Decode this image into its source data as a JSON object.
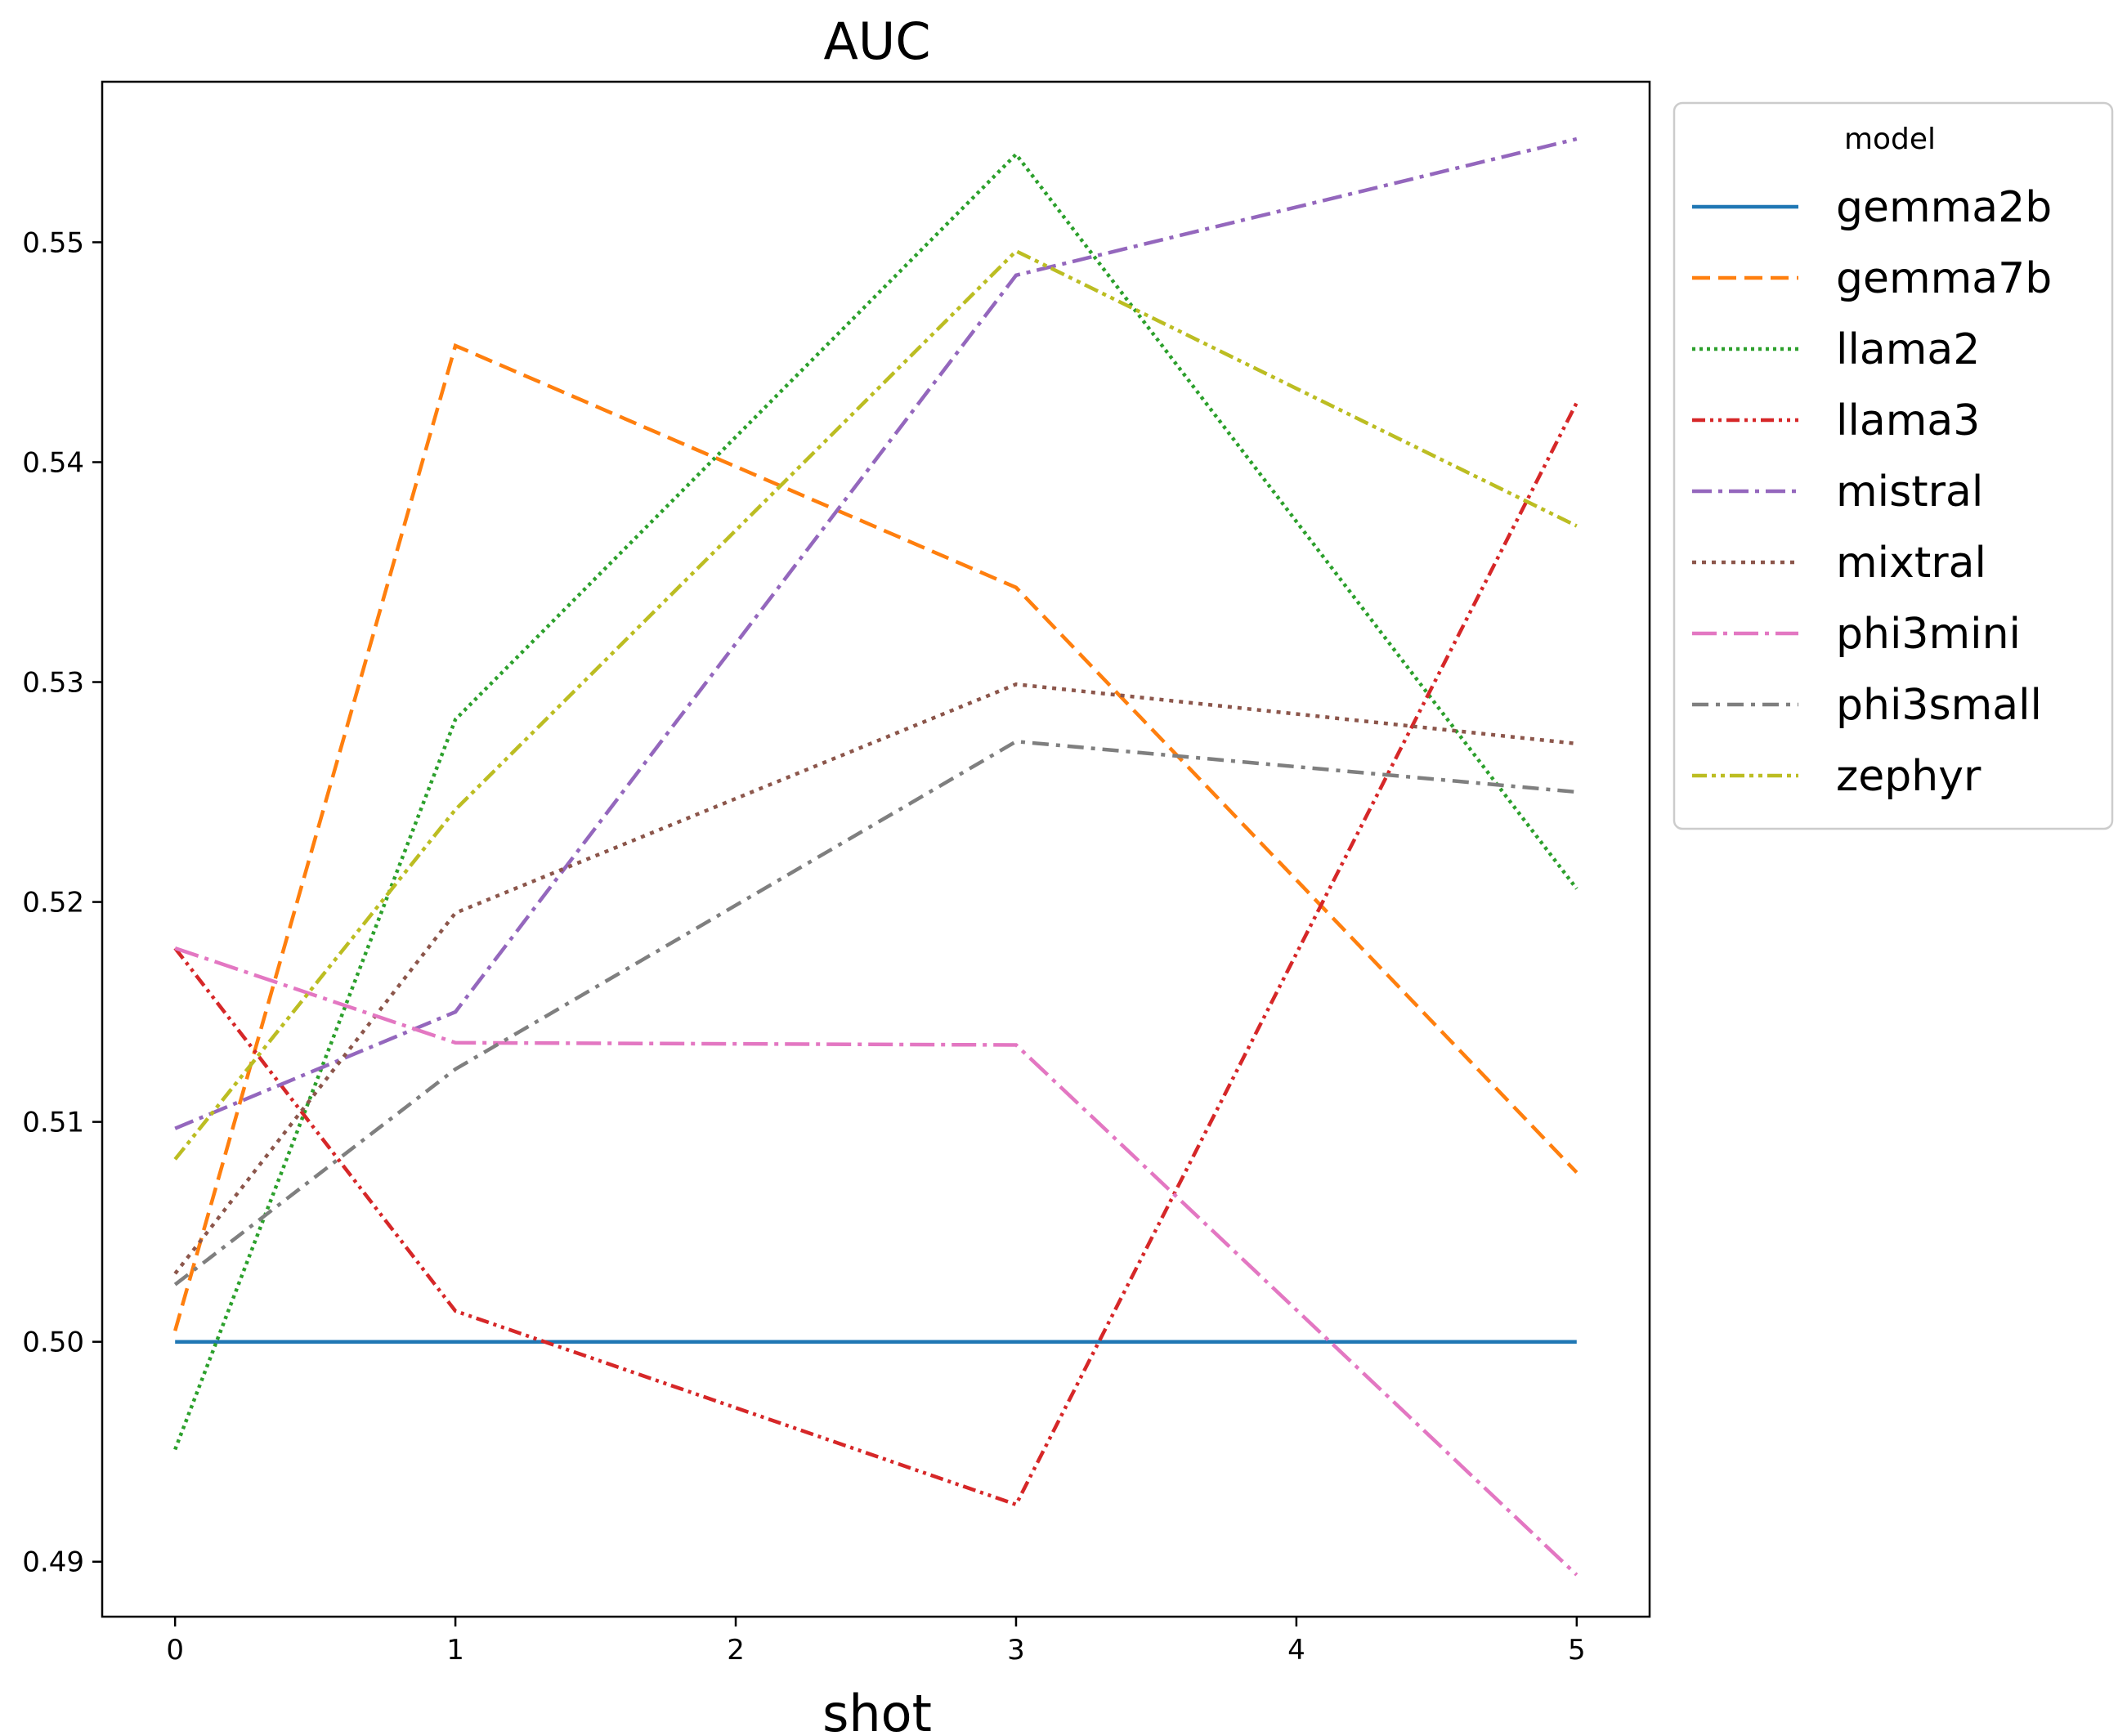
{
  "chart_data": {
    "type": "line",
    "title": "AUC",
    "xlabel": "shot",
    "ylabel": "",
    "xlim": [
      -0.26,
      5.26
    ],
    "ylim": [
      0.4875,
      0.5573
    ],
    "xticks": [
      0,
      1,
      2,
      3,
      4,
      5
    ],
    "yticks": [
      0.49,
      0.5,
      0.51,
      0.52,
      0.53,
      0.54,
      0.55
    ],
    "ytick_labels": [
      "0.49",
      "0.50",
      "0.51",
      "0.52",
      "0.53",
      "0.54",
      "0.55"
    ],
    "grid": false,
    "legend": {
      "title": "model",
      "placement": "outside-right"
    },
    "x": [
      0,
      1,
      3,
      5
    ],
    "series": [
      {
        "name": "gemma2b",
        "color": "#1f77b4",
        "dash": "solid",
        "values": [
          0.5,
          0.5,
          0.5,
          0.5
        ]
      },
      {
        "name": "gemma7b",
        "color": "#ff7f0e",
        "dash": "dashed",
        "values": [
          0.5005,
          0.5453,
          0.5343,
          0.5077
        ]
      },
      {
        "name": "llama2",
        "color": "#2ca02c",
        "dash": "dotted",
        "values": [
          0.4951,
          0.5283,
          0.554,
          0.5206
        ]
      },
      {
        "name": "llama3",
        "color": "#d62728",
        "dash": "dashdotdot",
        "values": [
          0.5179,
          0.5014,
          0.4926,
          0.5427
        ]
      },
      {
        "name": "mistral",
        "color": "#9467bd",
        "dash": "dashdot",
        "values": [
          0.5097,
          0.515,
          0.5485,
          0.5547
        ]
      },
      {
        "name": "mixtral",
        "color": "#8c564b",
        "dash": "densedot",
        "values": [
          0.5031,
          0.5195,
          0.5299,
          0.5272
        ]
      },
      {
        "name": "phi3mini",
        "color": "#e377c2",
        "dash": "longdashdot",
        "values": [
          0.5179,
          0.5136,
          0.5135,
          0.4894
        ]
      },
      {
        "name": "phi3small",
        "color": "#7f7f7f",
        "dash": "dashdot2",
        "values": [
          0.5026,
          0.5124,
          0.5273,
          0.525
        ]
      },
      {
        "name": "zephyr",
        "color": "#bcbd22",
        "dash": "dashdotdot2",
        "values": [
          0.5083,
          0.5242,
          0.5496,
          0.5371
        ]
      }
    ]
  }
}
